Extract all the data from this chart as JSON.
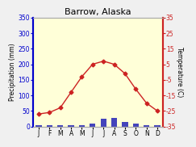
{
  "title": "Barrow, Alaska",
  "months": [
    "J",
    "F",
    "M",
    "A",
    "M",
    "J",
    "J",
    "A",
    "S",
    "O",
    "N",
    "D"
  ],
  "precipitation_mm": [
    5,
    3,
    3,
    3,
    3,
    8,
    25,
    28,
    15,
    8,
    5,
    5
  ],
  "temperature_c": [
    -27,
    -26,
    -23,
    -13,
    -3,
    5,
    7,
    5,
    -1,
    -11,
    -20,
    -25
  ],
  "precip_ylim": [
    0,
    350
  ],
  "temp_ylim": [
    -35,
    35
  ],
  "precip_yticks": [
    0,
    50,
    100,
    150,
    200,
    250,
    300,
    350
  ],
  "temp_yticks": [
    -35,
    -25,
    -15,
    -5,
    5,
    15,
    25,
    35
  ],
  "bar_color": "#4444bb",
  "line_color": "#cc2222",
  "marker": "D",
  "marker_size": 2.5,
  "background_color": "#f0f0f0",
  "plot_bg_color": "#ffffd8",
  "left_axis_color": "#0000cc",
  "right_axis_color": "#cc2222",
  "title_fontsize": 8,
  "axis_label_fontsize": 5.5,
  "tick_fontsize": 5.5
}
